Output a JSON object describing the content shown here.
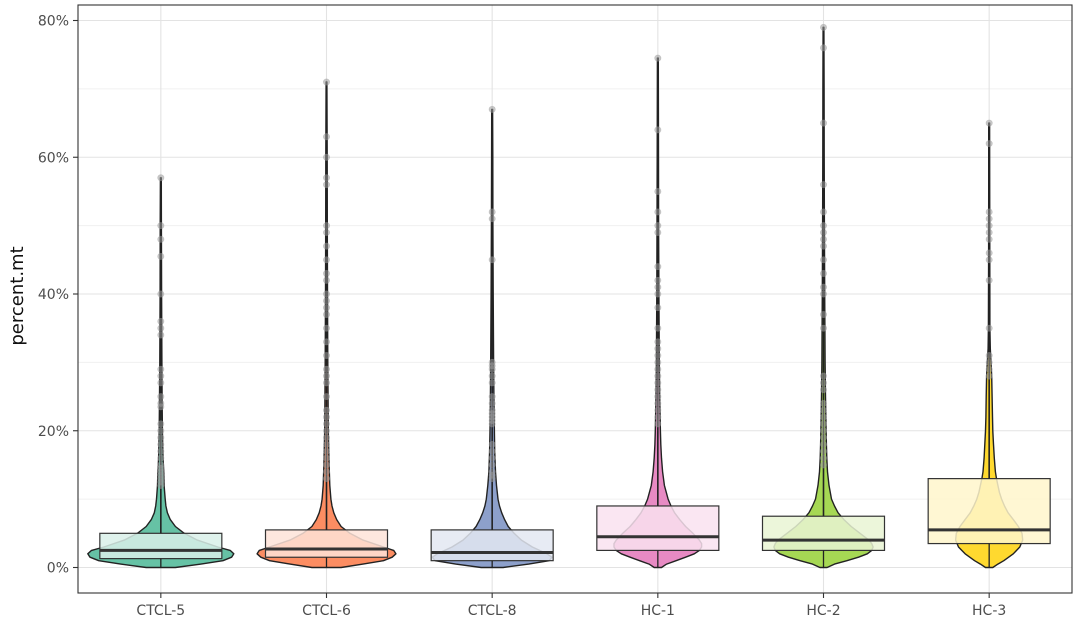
{
  "chart_data": {
    "type": "violin",
    "ylabel": "percent.mt",
    "xlabel": "",
    "ylim": [
      0,
      80
    ],
    "y_ticks": [
      0,
      20,
      40,
      60,
      80
    ],
    "y_tick_labels": [
      "0%",
      "20%",
      "40%",
      "60%",
      "80%"
    ],
    "y_minor_ticks": [
      10,
      30,
      50,
      70
    ],
    "grid": true,
    "legend": "none",
    "categories": [
      "CTCL-5",
      "CTCL-6",
      "CTCL-8",
      "HC-1",
      "HC-2",
      "HC-3"
    ],
    "series": [
      {
        "category": "CTCL-5",
        "color": "#66c2a5",
        "min": 0,
        "q1": 1.3,
        "median": 2.5,
        "q3": 5.0,
        "max": 57,
        "profile": [
          [
            0,
            0.2
          ],
          [
            0.5,
            0.55
          ],
          [
            1,
            0.85
          ],
          [
            1.5,
            0.97
          ],
          [
            2,
            1.0
          ],
          [
            2.5,
            0.95
          ],
          [
            3,
            0.78
          ],
          [
            4,
            0.5
          ],
          [
            5,
            0.32
          ],
          [
            6,
            0.2
          ],
          [
            7,
            0.13
          ],
          [
            8,
            0.09
          ],
          [
            9,
            0.07
          ],
          [
            10,
            0.06
          ],
          [
            12,
            0.045
          ],
          [
            14,
            0.04
          ],
          [
            16,
            0.03
          ],
          [
            20,
            0.022
          ],
          [
            25,
            0.018
          ],
          [
            30,
            0.014
          ],
          [
            40,
            0.01
          ],
          [
            50,
            0.008
          ],
          [
            57,
            0.006
          ]
        ],
        "outliers": [
          57,
          50,
          48,
          45.5,
          40,
          36,
          35,
          34,
          29,
          28,
          27,
          25,
          24,
          23.5,
          21,
          20,
          19,
          18,
          17,
          16,
          15,
          14.5,
          14,
          13.5,
          13,
          12.5,
          12
        ]
      },
      {
        "category": "CTCL-6",
        "color": "#fc8d62",
        "min": 0,
        "q1": 1.5,
        "median": 2.7,
        "q3": 5.5,
        "max": 71,
        "profile": [
          [
            0,
            0.2
          ],
          [
            0.5,
            0.5
          ],
          [
            1,
            0.78
          ],
          [
            1.5,
            0.9
          ],
          [
            2,
            0.95
          ],
          [
            2.5,
            0.92
          ],
          [
            3,
            0.78
          ],
          [
            4,
            0.5
          ],
          [
            5,
            0.32
          ],
          [
            6,
            0.2
          ],
          [
            7,
            0.14
          ],
          [
            8,
            0.1
          ],
          [
            9,
            0.075
          ],
          [
            10,
            0.06
          ],
          [
            12,
            0.045
          ],
          [
            15,
            0.035
          ],
          [
            20,
            0.025
          ],
          [
            30,
            0.018
          ],
          [
            40,
            0.014
          ],
          [
            50,
            0.011
          ],
          [
            60,
            0.009
          ],
          [
            71,
            0.006
          ]
        ],
        "outliers": [
          71,
          63,
          60,
          57,
          56,
          50,
          49,
          47,
          45,
          43,
          42,
          40,
          39,
          38,
          37,
          35,
          33,
          31,
          29,
          28,
          27,
          25,
          23,
          22,
          21,
          20,
          19,
          18,
          17,
          16,
          15,
          14,
          13
        ]
      },
      {
        "category": "CTCL-8",
        "color": "#8da0cb",
        "min": 0,
        "q1": 1.0,
        "median": 2.2,
        "q3": 5.5,
        "max": 67,
        "profile": [
          [
            0,
            0.15
          ],
          [
            0.5,
            0.5
          ],
          [
            1,
            0.78
          ],
          [
            1.5,
            0.82
          ],
          [
            2,
            0.75
          ],
          [
            3,
            0.55
          ],
          [
            4,
            0.4
          ],
          [
            5,
            0.3
          ],
          [
            6,
            0.22
          ],
          [
            7,
            0.17
          ],
          [
            8,
            0.13
          ],
          [
            9,
            0.1
          ],
          [
            10,
            0.08
          ],
          [
            12,
            0.06
          ],
          [
            14,
            0.045
          ],
          [
            17,
            0.035
          ],
          [
            20,
            0.03
          ],
          [
            25,
            0.024
          ],
          [
            30,
            0.02
          ],
          [
            40,
            0.014
          ],
          [
            50,
            0.01
          ],
          [
            60,
            0.008
          ],
          [
            67,
            0.006
          ]
        ],
        "outliers": [
          67,
          52,
          51,
          45,
          30,
          29.5,
          29,
          28,
          27,
          25,
          24,
          23,
          22.5,
          22,
          21.5,
          21,
          18,
          17,
          16,
          15,
          14,
          13.5,
          13
        ]
      },
      {
        "category": "HC-1",
        "color": "#e78ac3",
        "min": 0,
        "q1": 2.5,
        "median": 4.5,
        "q3": 9.0,
        "max": 74.5,
        "profile": [
          [
            0,
            0.05
          ],
          [
            0.5,
            0.12
          ],
          [
            1,
            0.25
          ],
          [
            1.5,
            0.38
          ],
          [
            2,
            0.5
          ],
          [
            2.5,
            0.57
          ],
          [
            3,
            0.6
          ],
          [
            3.5,
            0.6
          ],
          [
            4,
            0.57
          ],
          [
            5,
            0.48
          ],
          [
            6,
            0.38
          ],
          [
            7,
            0.3
          ],
          [
            8,
            0.23
          ],
          [
            9,
            0.18
          ],
          [
            10,
            0.14
          ],
          [
            12,
            0.09
          ],
          [
            14,
            0.065
          ],
          [
            16,
            0.05
          ],
          [
            18,
            0.04
          ],
          [
            20,
            0.035
          ],
          [
            25,
            0.025
          ],
          [
            30,
            0.02
          ],
          [
            40,
            0.014
          ],
          [
            50,
            0.011
          ],
          [
            60,
            0.009
          ],
          [
            74.5,
            0.006
          ]
        ],
        "outliers": [
          74.5,
          64,
          55,
          52,
          50,
          49,
          44,
          42,
          41,
          40,
          38,
          35,
          33,
          32,
          31,
          30,
          29,
          28,
          27,
          26,
          25,
          24,
          23,
          22,
          21
        ]
      },
      {
        "category": "HC-2",
        "color": "#a6d854",
        "min": 0,
        "q1": 2.5,
        "median": 4.0,
        "q3": 7.5,
        "max": 79,
        "profile": [
          [
            0,
            0.05
          ],
          [
            0.5,
            0.15
          ],
          [
            1,
            0.32
          ],
          [
            1.5,
            0.48
          ],
          [
            2,
            0.6
          ],
          [
            2.5,
            0.66
          ],
          [
            3,
            0.68
          ],
          [
            3.5,
            0.66
          ],
          [
            4,
            0.62
          ],
          [
            5,
            0.5
          ],
          [
            6,
            0.38
          ],
          [
            7,
            0.28
          ],
          [
            8,
            0.2
          ],
          [
            9,
            0.15
          ],
          [
            10,
            0.11
          ],
          [
            12,
            0.075
          ],
          [
            14,
            0.055
          ],
          [
            16,
            0.045
          ],
          [
            18,
            0.04
          ],
          [
            20,
            0.035
          ],
          [
            25,
            0.028
          ],
          [
            30,
            0.022
          ],
          [
            40,
            0.016
          ],
          [
            50,
            0.012
          ],
          [
            60,
            0.01
          ],
          [
            70,
            0.008
          ],
          [
            79,
            0.006
          ]
        ],
        "outliers": [
          79,
          76,
          65,
          56,
          52,
          50,
          49,
          48,
          47,
          45,
          43,
          41,
          40,
          37,
          35,
          28,
          27,
          26,
          24,
          23,
          22,
          21,
          20,
          19,
          18,
          17,
          16,
          15
        ]
      },
      {
        "category": "HC-3",
        "color": "#ffd92f",
        "min": 0,
        "q1": 3.5,
        "median": 5.5,
        "q3": 13.0,
        "max": 65,
        "profile": [
          [
            0,
            0.05
          ],
          [
            0.5,
            0.12
          ],
          [
            1,
            0.2
          ],
          [
            2,
            0.33
          ],
          [
            3,
            0.42
          ],
          [
            4,
            0.46
          ],
          [
            5,
            0.45
          ],
          [
            6,
            0.4
          ],
          [
            7,
            0.33
          ],
          [
            8,
            0.26
          ],
          [
            9,
            0.21
          ],
          [
            10,
            0.17
          ],
          [
            11,
            0.14
          ],
          [
            12,
            0.12
          ],
          [
            13,
            0.1
          ],
          [
            14,
            0.085
          ],
          [
            16,
            0.07
          ],
          [
            18,
            0.06
          ],
          [
            20,
            0.05
          ],
          [
            22,
            0.045
          ],
          [
            25,
            0.04
          ],
          [
            28,
            0.035
          ],
          [
            30,
            0.025
          ],
          [
            32,
            0.015
          ],
          [
            35,
            0.01
          ],
          [
            45,
            0.008
          ],
          [
            55,
            0.007
          ],
          [
            65,
            0.006
          ]
        ],
        "outliers": [
          65,
          62,
          52,
          51,
          50,
          49,
          48,
          46,
          45,
          42,
          35,
          31,
          30,
          29,
          28
        ]
      }
    ]
  }
}
